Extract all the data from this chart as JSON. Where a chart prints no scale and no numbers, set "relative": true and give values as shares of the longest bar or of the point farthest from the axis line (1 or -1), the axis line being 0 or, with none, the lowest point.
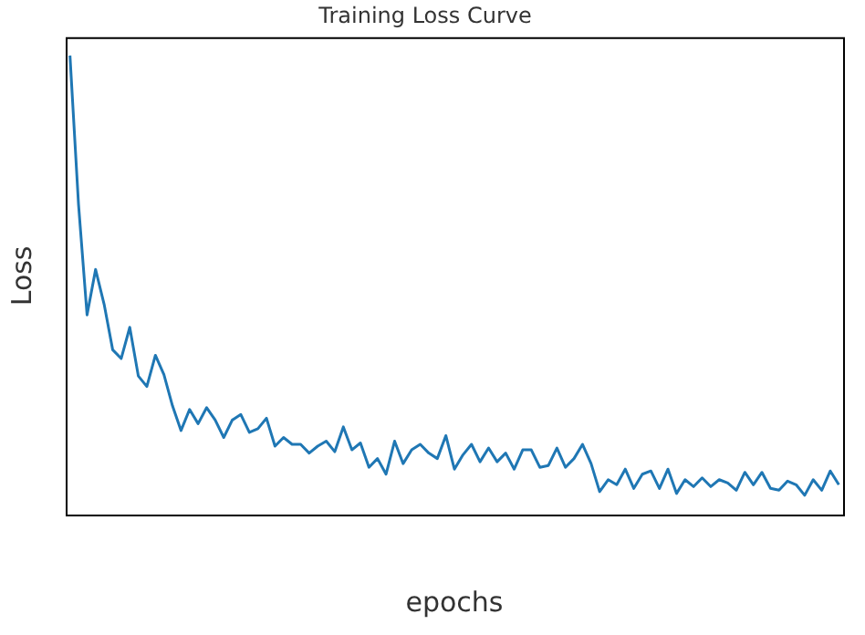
{
  "chart_data": {
    "type": "line",
    "title": "Training Loss Curve",
    "xlabel": "epochs",
    "ylabel": "Loss",
    "relative": true,
    "grid": false,
    "legend": false,
    "marker": "none",
    "line_style": "solid",
    "categories": [
      null,
      null,
      null,
      null,
      null,
      null,
      null,
      null,
      null,
      null,
      null,
      null,
      null,
      null,
      null,
      null,
      null,
      null,
      null,
      null,
      null,
      null,
      null,
      null,
      null,
      null,
      null,
      null,
      null,
      null,
      null,
      null,
      null,
      null,
      null,
      null,
      null,
      null,
      null,
      null,
      null,
      null,
      null,
      null,
      null,
      null,
      null,
      null,
      null,
      null,
      null,
      null,
      null,
      null,
      null,
      null,
      null,
      null,
      null,
      null,
      null,
      null,
      null,
      null,
      null,
      null,
      null,
      null,
      null,
      null,
      null,
      null,
      null,
      null,
      null,
      null,
      null,
      null,
      null,
      null,
      null,
      null,
      null,
      null,
      null,
      null,
      null,
      null,
      null,
      null,
      null
    ],
    "series": [
      {
        "color": "#1f77b4",
        "values": [
          1,
          0.676,
          0.435,
          0.534,
          0.458,
          0.359,
          0.34,
          0.408,
          0.302,
          0.279,
          0.347,
          0.305,
          0.237,
          0.183,
          0.229,
          0.198,
          0.233,
          0.206,
          0.168,
          0.206,
          0.218,
          0.179,
          0.187,
          0.21,
          0.149,
          0.168,
          0.153,
          0.153,
          0.134,
          0.149,
          0.16,
          0.137,
          0.191,
          0.141,
          0.156,
          0.103,
          0.122,
          0.088,
          0.16,
          0.111,
          0.141,
          0.153,
          0.134,
          0.122,
          0.172,
          0.099,
          0.13,
          0.153,
          0.115,
          0.145,
          0.115,
          0.134,
          0.099,
          0.141,
          0.141,
          0.103,
          0.107,
          0.145,
          0.103,
          0.122,
          0.153,
          0.111,
          0.05,
          0.076,
          0.065,
          0.099,
          0.057,
          0.088,
          0.095,
          0.057,
          0.099,
          0.046,
          0.076,
          0.061,
          0.08,
          0.061,
          0.076,
          0.069,
          0.053,
          0.092,
          0.065,
          0.092,
          0.057,
          0.053,
          0.073,
          0.065,
          0.042,
          0.076,
          0.053,
          0.095,
          0.065
        ]
      }
    ]
  }
}
